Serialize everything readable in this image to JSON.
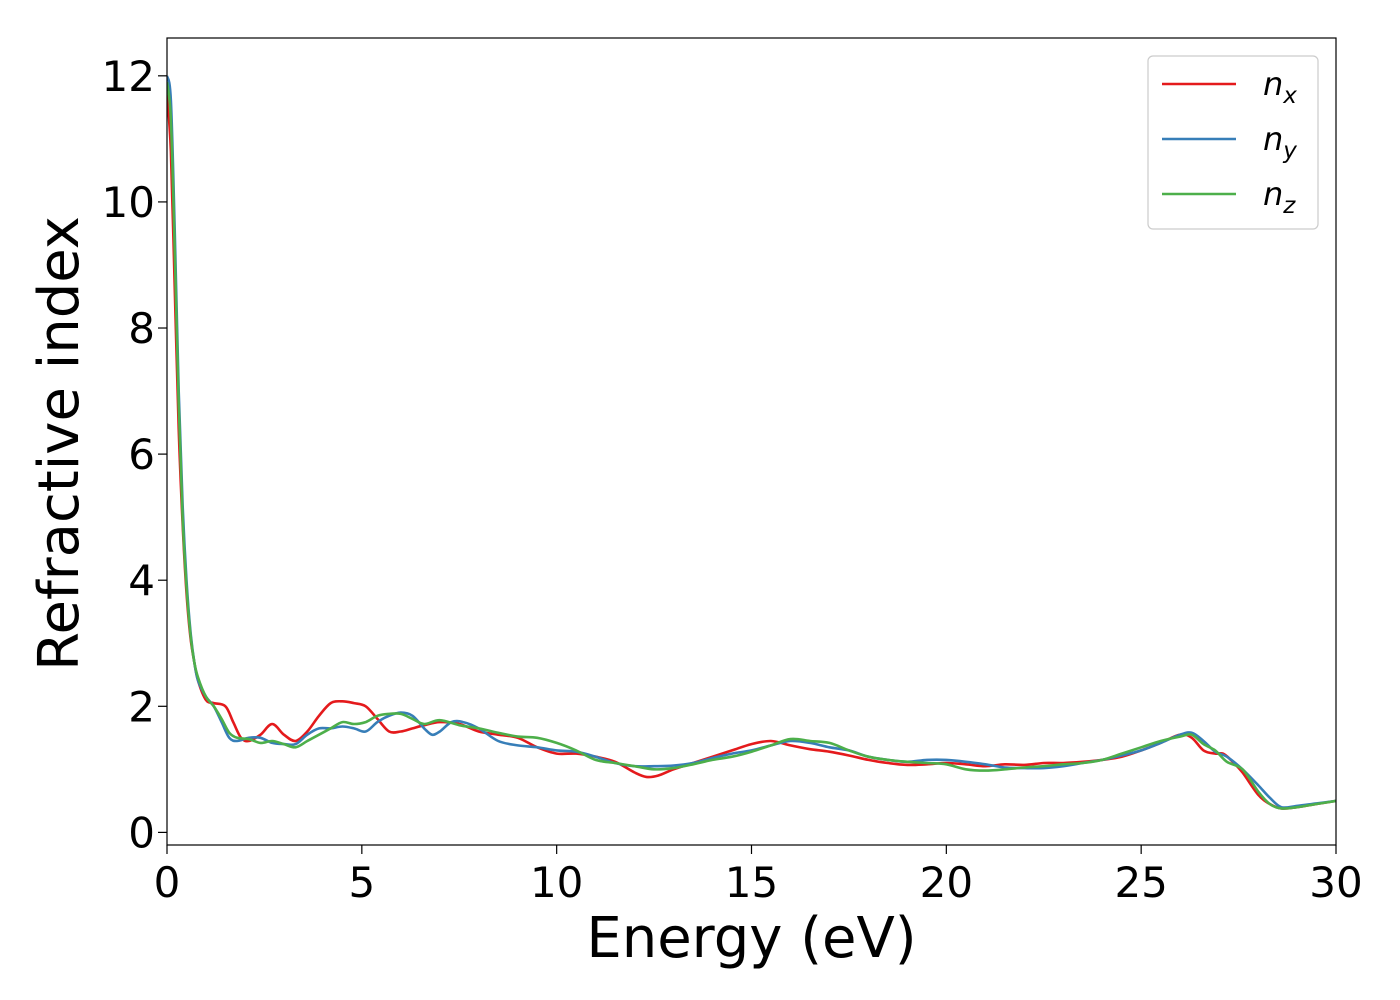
{
  "chart_data": {
    "type": "line",
    "title": "",
    "xlabel": "Energy (eV)",
    "ylabel": "Refractive index",
    "xlim": [
      0,
      30
    ],
    "ylim": [
      -0.2,
      12.6
    ],
    "xticks": [
      0,
      5,
      10,
      15,
      20,
      25,
      30
    ],
    "yticks": [
      0,
      2,
      4,
      6,
      8,
      10,
      12
    ],
    "grid": false,
    "legend_position": "top-right",
    "series": [
      {
        "name": "n",
        "subscript": "x",
        "color": "#e41a1c",
        "x": [
          0,
          0.1,
          0.2,
          0.3,
          0.4,
          0.5,
          0.6,
          0.7,
          0.8,
          1.0,
          1.2,
          1.5,
          1.7,
          1.9,
          2.1,
          2.4,
          2.7,
          3.0,
          3.3,
          3.6,
          3.9,
          4.2,
          4.5,
          4.8,
          5.1,
          5.4,
          5.7,
          6.0,
          6.3,
          6.6,
          7.0,
          7.5,
          8.0,
          8.5,
          9.0,
          9.5,
          10.0,
          10.5,
          11.0,
          11.5,
          12.0,
          12.3,
          12.6,
          13.0,
          13.5,
          14.0,
          14.5,
          15.0,
          15.5,
          16.0,
          16.5,
          17.0,
          17.5,
          18.0,
          18.5,
          19.0,
          19.5,
          20.0,
          20.5,
          21.0,
          21.5,
          22.0,
          22.5,
          23.0,
          23.5,
          24.0,
          24.5,
          25.0,
          25.5,
          26.0,
          26.3,
          26.6,
          26.9,
          27.1,
          27.3,
          27.6,
          28.0,
          28.3,
          28.6,
          29.0,
          29.5,
          30.0
        ],
        "y": [
          11.7,
          10.8,
          8.6,
          6.4,
          4.9,
          3.8,
          3.1,
          2.7,
          2.4,
          2.1,
          2.05,
          2.0,
          1.75,
          1.5,
          1.45,
          1.55,
          1.72,
          1.55,
          1.45,
          1.6,
          1.85,
          2.05,
          2.08,
          2.05,
          2.0,
          1.8,
          1.6,
          1.6,
          1.65,
          1.7,
          1.75,
          1.72,
          1.6,
          1.55,
          1.5,
          1.35,
          1.25,
          1.25,
          1.2,
          1.12,
          0.95,
          0.88,
          0.9,
          1.0,
          1.1,
          1.2,
          1.3,
          1.4,
          1.45,
          1.38,
          1.32,
          1.28,
          1.22,
          1.15,
          1.1,
          1.07,
          1.08,
          1.1,
          1.08,
          1.05,
          1.08,
          1.07,
          1.1,
          1.1,
          1.12,
          1.15,
          1.2,
          1.3,
          1.42,
          1.55,
          1.5,
          1.3,
          1.25,
          1.25,
          1.15,
          0.95,
          0.6,
          0.45,
          0.38,
          0.4,
          0.45,
          0.5
        ]
      },
      {
        "name": "n",
        "subscript": "y",
        "color": "#377eb8",
        "x": [
          0,
          0.1,
          0.2,
          0.3,
          0.4,
          0.5,
          0.6,
          0.7,
          0.8,
          1.0,
          1.2,
          1.4,
          1.6,
          1.8,
          2.1,
          2.4,
          2.7,
          3.0,
          3.3,
          3.6,
          3.9,
          4.2,
          4.5,
          4.8,
          5.1,
          5.4,
          5.7,
          6.0,
          6.3,
          6.6,
          6.8,
          7.0,
          7.3,
          7.6,
          8.0,
          8.5,
          9.0,
          9.5,
          10.0,
          10.5,
          11.0,
          11.5,
          12.0,
          12.5,
          13.0,
          13.5,
          14.0,
          14.5,
          15.0,
          15.5,
          16.0,
          16.5,
          17.0,
          17.5,
          18.0,
          18.5,
          19.0,
          19.5,
          20.0,
          20.5,
          21.0,
          21.5,
          22.0,
          22.5,
          23.0,
          23.5,
          24.0,
          24.5,
          25.0,
          25.5,
          26.0,
          26.3,
          26.6,
          26.9,
          27.2,
          27.6,
          28.0,
          28.3,
          28.6,
          29.0,
          29.5,
          30.0
        ],
        "y": [
          12.0,
          11.6,
          9.5,
          7.0,
          5.2,
          4.0,
          3.2,
          2.7,
          2.4,
          2.15,
          2.0,
          1.75,
          1.5,
          1.45,
          1.5,
          1.5,
          1.42,
          1.4,
          1.4,
          1.55,
          1.65,
          1.65,
          1.68,
          1.65,
          1.6,
          1.75,
          1.85,
          1.9,
          1.85,
          1.65,
          1.55,
          1.6,
          1.75,
          1.75,
          1.65,
          1.45,
          1.38,
          1.35,
          1.3,
          1.28,
          1.2,
          1.1,
          1.05,
          1.05,
          1.06,
          1.1,
          1.18,
          1.25,
          1.3,
          1.38,
          1.45,
          1.42,
          1.35,
          1.3,
          1.2,
          1.15,
          1.12,
          1.15,
          1.15,
          1.12,
          1.08,
          1.03,
          1.02,
          1.02,
          1.05,
          1.1,
          1.15,
          1.22,
          1.3,
          1.42,
          1.55,
          1.58,
          1.45,
          1.28,
          1.2,
          1.0,
          0.75,
          0.55,
          0.4,
          0.42,
          0.46,
          0.5
        ]
      },
      {
        "name": "n",
        "subscript": "z",
        "color": "#4daf4a",
        "x": [
          0,
          0.1,
          0.2,
          0.3,
          0.4,
          0.5,
          0.6,
          0.7,
          0.8,
          1.0,
          1.2,
          1.4,
          1.6,
          1.8,
          2.1,
          2.4,
          2.7,
          3.0,
          3.3,
          3.6,
          3.9,
          4.2,
          4.5,
          4.8,
          5.1,
          5.4,
          5.7,
          6.0,
          6.3,
          6.6,
          7.0,
          7.5,
          8.0,
          8.5,
          9.0,
          9.5,
          10.0,
          10.5,
          11.0,
          11.5,
          12.0,
          12.5,
          13.0,
          13.5,
          14.0,
          14.5,
          15.0,
          15.5,
          16.0,
          16.5,
          17.0,
          17.5,
          18.0,
          18.5,
          19.0,
          19.5,
          20.0,
          20.5,
          21.0,
          21.5,
          22.0,
          22.5,
          23.0,
          23.5,
          24.0,
          24.5,
          25.0,
          25.5,
          26.0,
          26.3,
          26.6,
          26.9,
          27.2,
          27.6,
          28.0,
          28.3,
          28.6,
          29.0,
          29.5,
          30.0
        ],
        "y": [
          11.9,
          11.3,
          9.2,
          6.8,
          5.0,
          3.9,
          3.15,
          2.7,
          2.45,
          2.15,
          2.0,
          1.8,
          1.58,
          1.5,
          1.48,
          1.42,
          1.45,
          1.4,
          1.35,
          1.45,
          1.55,
          1.65,
          1.75,
          1.72,
          1.75,
          1.85,
          1.88,
          1.88,
          1.8,
          1.72,
          1.78,
          1.7,
          1.65,
          1.58,
          1.52,
          1.5,
          1.42,
          1.3,
          1.15,
          1.1,
          1.05,
          1.0,
          1.02,
          1.08,
          1.15,
          1.2,
          1.28,
          1.38,
          1.48,
          1.45,
          1.42,
          1.3,
          1.2,
          1.15,
          1.12,
          1.1,
          1.08,
          1.0,
          0.98,
          1.0,
          1.03,
          1.05,
          1.08,
          1.1,
          1.15,
          1.25,
          1.35,
          1.45,
          1.52,
          1.55,
          1.4,
          1.3,
          1.12,
          1.0,
          0.65,
          0.45,
          0.38,
          0.4,
          0.45,
          0.5
        ]
      }
    ]
  }
}
